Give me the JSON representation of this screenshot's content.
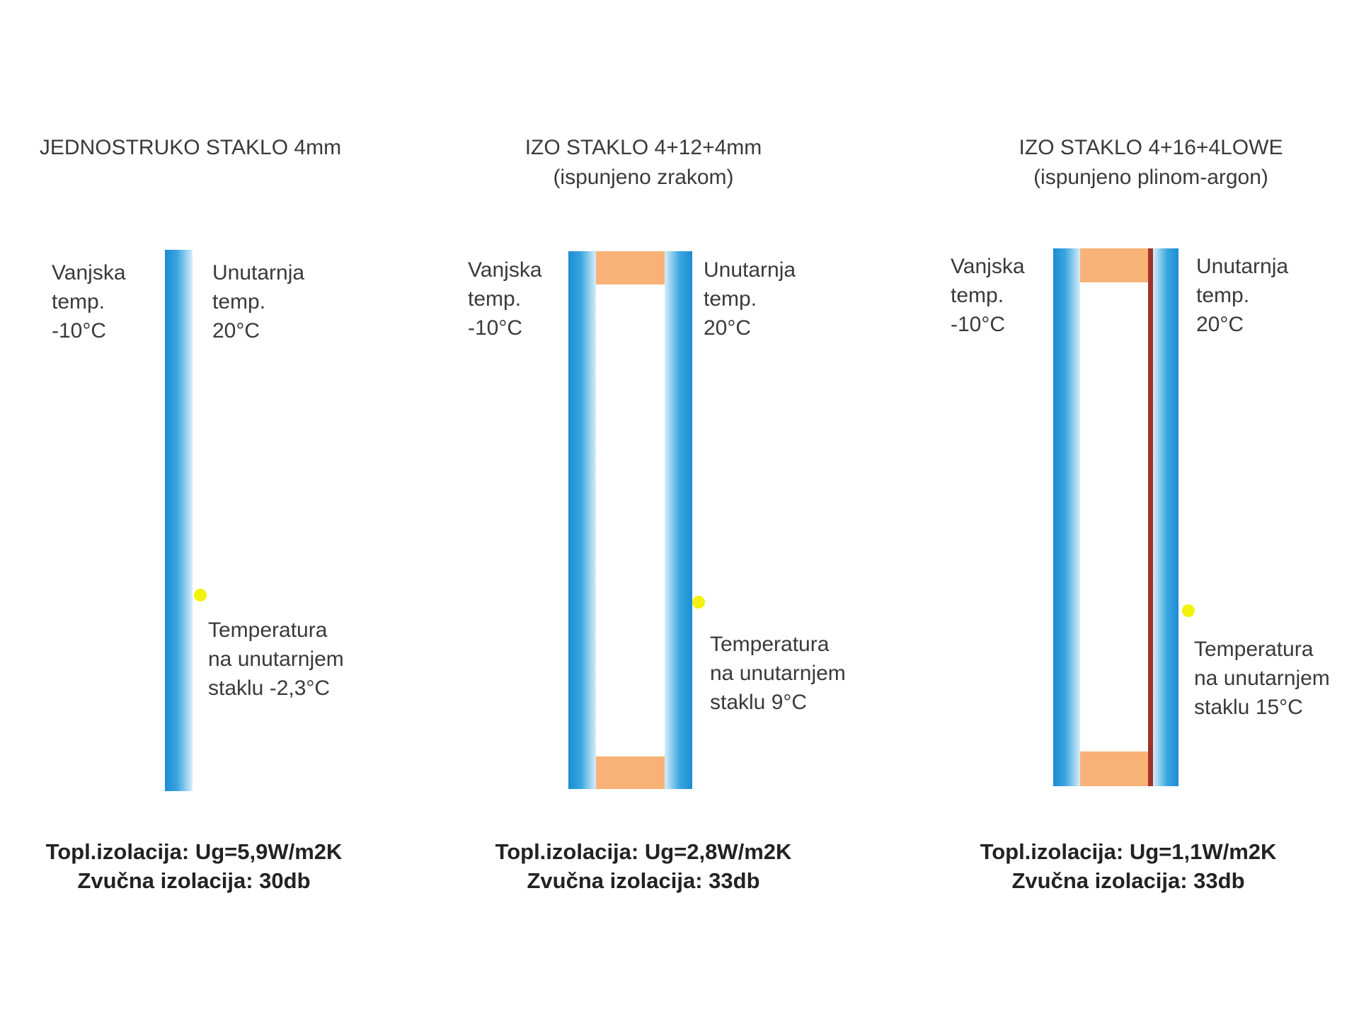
{
  "panels": [
    {
      "title": "JEDNOSTRUKO STAKLO 4mm",
      "outside": [
        "Vanjska",
        "temp.",
        "-10°C"
      ],
      "inside": [
        "Unutarnja",
        "temp.",
        "20°C"
      ],
      "surface": [
        "Temperatura",
        "na unutarnjem",
        "staklu -2,3°C"
      ],
      "thermal": "Topl.izolacija: Ug=5,9W/m2K",
      "sound": "Zvučna izolacija: 30db"
    },
    {
      "title": "IZO STAKLO 4+12+4mm",
      "subtitle": "(ispunjeno zrakom)",
      "outside": [
        "Vanjska",
        "temp.",
        "-10°C"
      ],
      "inside": [
        "Unutarnja",
        "temp.",
        "20°C"
      ],
      "surface": [
        "Temperatura",
        "na unutarnjem",
        "staklu 9°C"
      ],
      "thermal": "Topl.izolacija: Ug=2,8W/m2K",
      "sound": "Zvučna izolacija: 33db"
    },
    {
      "title": "IZO STAKLO 4+16+4LOWE",
      "subtitle": "(ispunjeno plinom-argon)",
      "outside": [
        "Vanjska",
        "temp.",
        "-10°C"
      ],
      "inside": [
        "Unutarnja",
        "temp.",
        "20°C"
      ],
      "surface": [
        "Temperatura",
        "na unutarnjem",
        "staklu 15°C"
      ],
      "thermal": "Topl.izolacija: Ug=1,1W/m2K",
      "sound": "Zvučna izolacija: 33db"
    }
  ]
}
